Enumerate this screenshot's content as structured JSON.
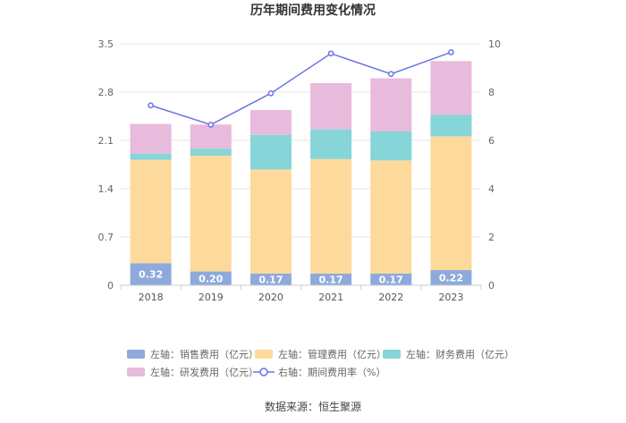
{
  "chart_data": {
    "type": "bar",
    "stacked": true,
    "title": "历年期间费用变化情况",
    "categories": [
      "2018",
      "2019",
      "2020",
      "2021",
      "2022",
      "2023"
    ],
    "left_axis": {
      "min": 0,
      "max": 3.5,
      "ticks": [
        "0",
        "0.7",
        "1.4",
        "2.1",
        "2.8",
        "3.5"
      ]
    },
    "right_axis": {
      "min": 0,
      "max": 10,
      "ticks": [
        "0",
        "2",
        "4",
        "6",
        "8",
        "10"
      ]
    },
    "series": [
      {
        "name": "左轴：销售费用（亿元）",
        "axis": "left",
        "type": "bar",
        "color": "#8eaadc",
        "values": [
          0.32,
          0.2,
          0.17,
          0.17,
          0.17,
          0.22
        ],
        "labels": [
          "0.32",
          "0.20",
          "0.17",
          "0.17",
          "0.17",
          "0.22"
        ]
      },
      {
        "name": "左轴：管理费用（亿元）",
        "axis": "left",
        "type": "bar",
        "color": "#fdd99b",
        "values": [
          1.5,
          1.68,
          1.51,
          1.66,
          1.64,
          1.94
        ]
      },
      {
        "name": "左轴：财务费用（亿元）",
        "axis": "left",
        "type": "bar",
        "color": "#85d5d9",
        "values": [
          0.09,
          0.1,
          0.5,
          0.43,
          0.42,
          0.31
        ]
      },
      {
        "name": "左轴：研发费用（亿元）",
        "axis": "left",
        "type": "bar",
        "color": "#e8badb",
        "values": [
          0.43,
          0.35,
          0.36,
          0.67,
          0.77,
          0.78
        ]
      },
      {
        "name": "右轴：期间费用率（%）",
        "axis": "right",
        "type": "line",
        "color": "#6b73e6",
        "values": [
          7.45,
          6.65,
          7.95,
          9.6,
          8.75,
          9.65
        ]
      }
    ]
  },
  "source": "数据来源：恒生聚源"
}
